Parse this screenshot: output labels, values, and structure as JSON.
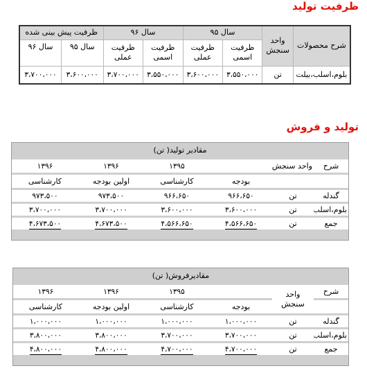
{
  "section1": {
    "title": "ظرفیت تولید",
    "headers": {
      "desc": "شرح محصولات",
      "unit": "واحد سنجش",
      "y95": "سال ۹۵",
      "y96": "سال ۹۶",
      "forecast": "ظرفیت پیش بینی شده",
      "nominal": "ظرفیت اسمی",
      "actual": "ظرفیت عملی",
      "f95": "سال ۹۵",
      "f96": "سال ۹۶"
    },
    "row": {
      "desc": "بلوم،اسلب،بیلت",
      "unit": "تن",
      "y95_nominal": "۳،۵۵۰،۰۰۰",
      "y95_actual": "۳،۶۰۰،۰۰۰",
      "y96_nominal": "۳،۵۵۰،۰۰۰",
      "y96_actual": "۳،۷۰۰،۰۰۰",
      "f95": "۳،۶۰۰،۰۰۰",
      "f96": "۳،۷۰۰،۰۰۰"
    }
  },
  "section2": {
    "title": "تولید و فروش",
    "production": {
      "banner": "مقادیر تولید( تن)",
      "desc": "شرح",
      "unit": "واحد سنجش",
      "years": [
        "۱۳۹۵",
        "۱۳۹۶",
        "۱۳۹۶"
      ],
      "subs": [
        "بودجه",
        "کارشناسی",
        "اولین بودجه",
        "کارشناسی"
      ],
      "rows": [
        {
          "desc": "گندله",
          "unit": "تن",
          "values": [
            "۹۶۶،۶۵۰",
            "۹۶۶،۶۵۰",
            "۹۷۳،۵۰۰",
            "۹۷۳،۵۰۰"
          ]
        },
        {
          "desc": "بلوم،اسلب،بیلت",
          "unit": "تن",
          "values": [
            "۳،۶۰۰،۰۰۰",
            "۳،۶۰۰،۰۰۰",
            "۳،۷۰۰،۰۰۰",
            "۳،۷۰۰،۰۰۰"
          ]
        },
        {
          "desc": "جمع",
          "unit": "تن",
          "values": [
            "۴،۵۶۶،۶۵۰",
            "۴،۵۶۶،۶۵۰",
            "۴،۶۷۳،۵۰۰",
            "۴،۶۷۳،۵۰۰"
          ]
        }
      ]
    },
    "sales": {
      "banner": "مقادیرفروش( تن)",
      "desc": "شرح",
      "unit": "واحد سنجش",
      "years": [
        "۱۳۹۵",
        "۱۳۹۶",
        "۱۳۹۶"
      ],
      "subs": [
        "بودجه",
        "کارشناسی",
        "اولین بودجه",
        "کارشناسی"
      ],
      "rows": [
        {
          "desc": "گندله",
          "unit": "تن",
          "values": [
            "۱،۰۰۰،۰۰۰",
            "۱،۰۰۰،۰۰۰",
            "۱،۰۰۰،۰۰۰",
            "۱،۰۰۰،۰۰۰"
          ]
        },
        {
          "desc": "بلوم،اسلب،بیلت",
          "unit": "تن",
          "values": [
            "۳،۷۰۰،۰۰۰",
            "۳،۷۰۰،۰۰۰",
            "۳،۸۰۰،۰۰۰",
            "۳،۸۰۰،۰۰۰"
          ]
        },
        {
          "desc": "جمع",
          "unit": "تن",
          "values": [
            "۴،۷۰۰،۰۰۰",
            "۴،۷۰۰،۰۰۰",
            "۴،۸۰۰،۰۰۰",
            "۴،۸۰۰،۰۰۰"
          ]
        }
      ]
    }
  }
}
